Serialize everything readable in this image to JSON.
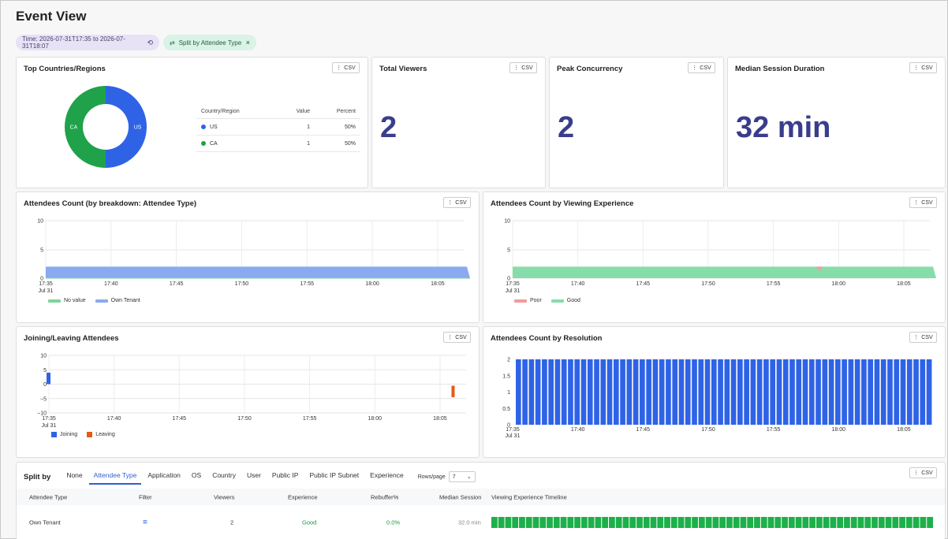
{
  "page": {
    "title": "Event View"
  },
  "filters": {
    "time": "Time: 2026-07-31T17:35 to 2026-07-31T18:07",
    "split": "Split by Attendee Type",
    "close": "×"
  },
  "csv_label": "CSV",
  "top_countries": {
    "title": "Top Countries/Regions",
    "table": {
      "headers": [
        "Country/Region",
        "Value",
        "Percent"
      ],
      "rows": [
        {
          "country": "US",
          "value": "1",
          "percent": "50%",
          "color": "#2f63e6"
        },
        {
          "country": "CA",
          "value": "1",
          "percent": "50%",
          "color": "#1fa24a"
        }
      ]
    },
    "chart_data": {
      "type": "pie",
      "labels": [
        "US",
        "CA"
      ],
      "values": [
        1,
        1
      ],
      "colors": [
        "#2f63e6",
        "#1fa24a"
      ]
    }
  },
  "kpis": [
    {
      "title": "Total Viewers",
      "value": "2"
    },
    {
      "title": "Peak Concurrency",
      "value": "2"
    },
    {
      "title": "Median Session Duration",
      "value": "32 min"
    }
  ],
  "x_ticks": [
    "17:35",
    "17:40",
    "17:45",
    "17:50",
    "17:55",
    "18:00",
    "18:05"
  ],
  "x_sub": "Jul 31",
  "attendees_by_type": {
    "title": "Attendees Count (by breakdown: Attendee Type)",
    "legend": [
      {
        "name": "No value",
        "color": "#7fd39b"
      },
      {
        "name": "Own Tenant",
        "color": "#8aaaf0"
      }
    ],
    "chart_data": {
      "type": "area",
      "x": [
        "17:35",
        "18:07"
      ],
      "series": [
        {
          "name": "No value",
          "values": [
            0,
            0
          ]
        },
        {
          "name": "Own Tenant",
          "values": [
            2,
            2
          ]
        }
      ],
      "ylim": [
        0,
        10
      ],
      "yticks": [
        "10",
        "5",
        "0"
      ]
    }
  },
  "attendees_by_experience": {
    "title": "Attendees Count by Viewing Experience",
    "legend": [
      {
        "name": "Poor",
        "color": "#f29b9b"
      },
      {
        "name": "Good",
        "color": "#86ddaa"
      }
    ],
    "chart_data": {
      "type": "area",
      "x": [
        "17:35",
        "18:07"
      ],
      "series": [
        {
          "name": "Poor",
          "values": [
            0,
            0
          ]
        },
        {
          "name": "Good",
          "values": [
            2,
            2
          ]
        }
      ],
      "ylim": [
        0,
        10
      ],
      "yticks": [
        "10",
        "5",
        "0"
      ]
    }
  },
  "joining_leaving": {
    "title": "Joining/Leaving Attendees",
    "legend": [
      {
        "name": "Joining",
        "color": "#2f63e6"
      },
      {
        "name": "Leaving",
        "color": "#e35b12"
      }
    ],
    "chart_data": {
      "type": "bar",
      "series": [
        {
          "name": "Joining",
          "x": [
            "17:35"
          ],
          "values": [
            2
          ]
        },
        {
          "name": "Leaving",
          "x": [
            "18:06"
          ],
          "values": [
            -2
          ]
        }
      ],
      "ylim": [
        -10,
        10
      ],
      "yticks": [
        "10",
        "5",
        "0",
        "−5",
        "−10"
      ]
    }
  },
  "attendees_by_resolution": {
    "title": "Attendees Count by Resolution",
    "chart_data": {
      "type": "bar",
      "x_range": [
        "17:35",
        "18:07"
      ],
      "bar_count": 64,
      "value": 2,
      "color": "#2f63e6",
      "ylim": [
        0,
        2
      ],
      "yticks": [
        "2",
        "1.5",
        "1",
        "0.5",
        "0"
      ]
    }
  },
  "split_section": {
    "label": "Split by",
    "tabs": [
      "None",
      "Attendee Type",
      "Application",
      "OS",
      "Country",
      "User",
      "Public IP",
      "Public IP Subnet",
      "Experience"
    ],
    "active_tab": "Attendee Type",
    "rows_per_page_label": "Rows/page",
    "rows_per_page_value": "7",
    "headers": [
      "Attendee Type",
      "Filter",
      "Viewers",
      "Experience",
      "Rebuffer%",
      "Median Session",
      "Viewing Experience Timeline"
    ],
    "rows": [
      {
        "type": "Own Tenant",
        "viewers": "2",
        "experience": "Good",
        "rebuffer": "0.0%",
        "median": "32.0 min",
        "timeline_segments": 64,
        "timeline_color": "#1db04a"
      }
    ]
  }
}
